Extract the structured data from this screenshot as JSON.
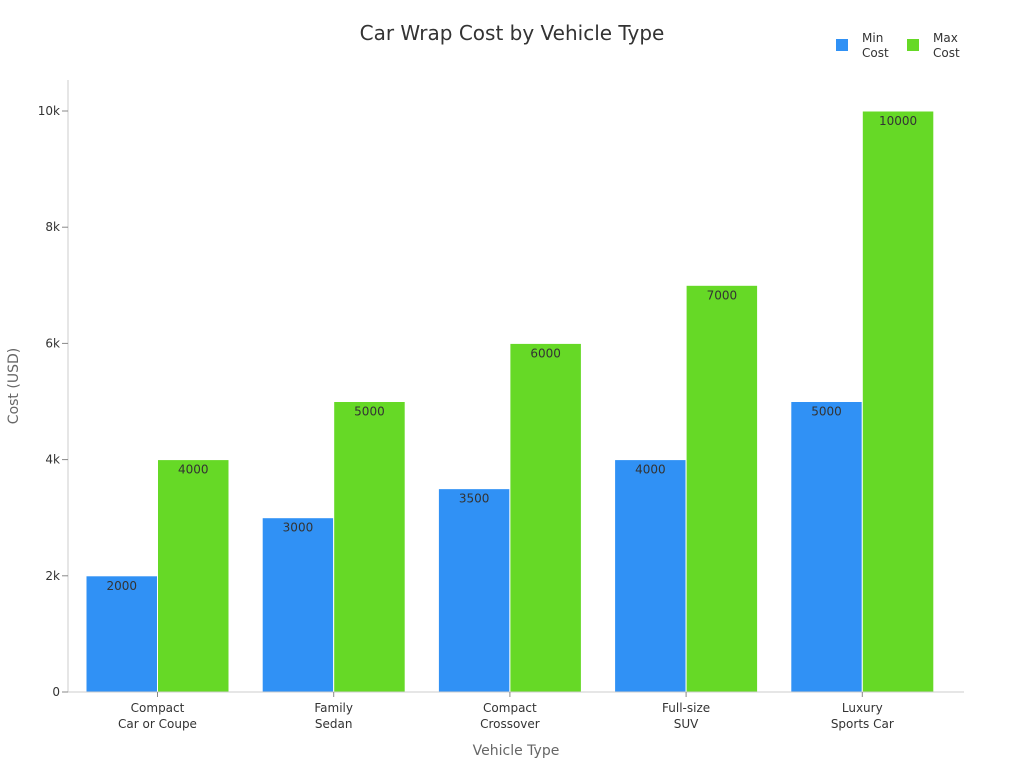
{
  "chart_data": {
    "type": "bar",
    "title": "Car Wrap Cost by Vehicle Type",
    "xlabel": "Vehicle Type",
    "ylabel": "Cost (USD)",
    "categories": [
      [
        "Compact",
        "Car or Coupe"
      ],
      [
        "Family",
        "Sedan"
      ],
      [
        "Compact",
        "Crossover"
      ],
      [
        "Full-size",
        "SUV"
      ],
      [
        "Luxury",
        "Sports Car"
      ]
    ],
    "series": [
      {
        "name": [
          "Min",
          "Cost"
        ],
        "color": "#3091f5",
        "values": [
          2000,
          3000,
          3500,
          4000,
          5000
        ]
      },
      {
        "name": [
          "Max",
          "Cost"
        ],
        "color": "#66d926",
        "values": [
          4000,
          5000,
          6000,
          7000,
          10000
        ]
      }
    ],
    "ylim": [
      0,
      10500
    ],
    "yticks": [
      0,
      2000,
      4000,
      6000,
      8000,
      10000
    ],
    "ytick_labels": [
      "0",
      "2k",
      "4k",
      "6k",
      "8k",
      "10k"
    ],
    "grid": false,
    "legend_position": "top-right"
  }
}
